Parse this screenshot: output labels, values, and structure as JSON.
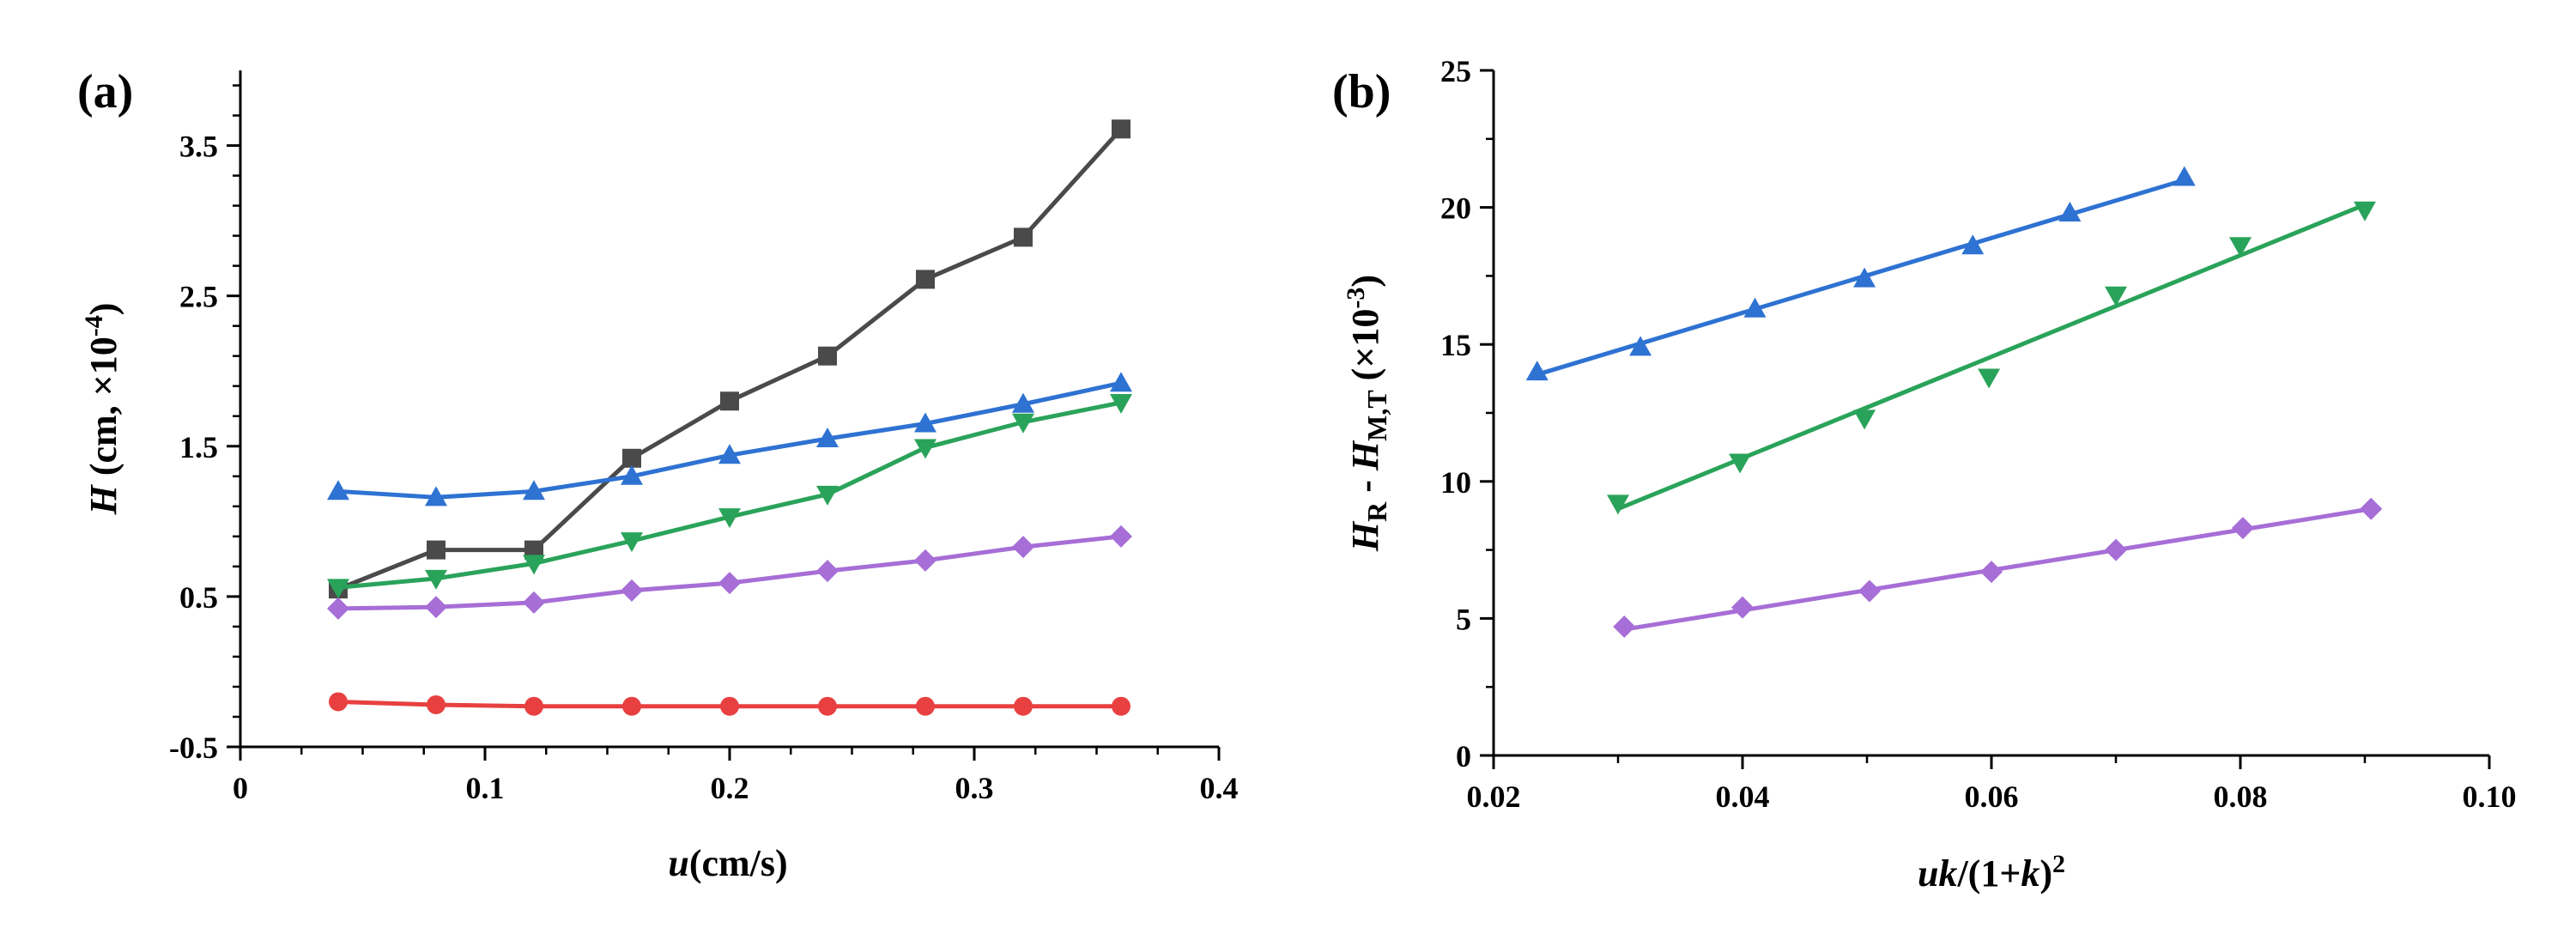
{
  "chart_data": [
    {
      "panel": "(a)",
      "type": "line",
      "xlabel_italic": "u",
      "xlabel_rest": "(cm/s)",
      "ylabel_italic": "H",
      "ylabel_rest": " (cm, ×10",
      "ylabel_exp": "-4",
      "ylabel_close": ")",
      "xlim": [
        0,
        0.4
      ],
      "ylim": [
        -0.5,
        4.0
      ],
      "xticks": [
        0,
        0.1,
        0.2,
        0.3,
        0.4
      ],
      "xtick_labels": [
        "0",
        "0.1",
        "0.2",
        "0.3",
        "0.4"
      ],
      "yticks": [
        -0.5,
        0.5,
        1.5,
        2.5,
        3.5
      ],
      "ytick_labels": [
        "-0.5",
        "0.5",
        "1.5",
        "2.5",
        "3.5"
      ],
      "series": [
        {
          "name": "square",
          "color": "#4a4a4a",
          "marker": "square",
          "x": [
            0.04,
            0.08,
            0.12,
            0.16,
            0.2,
            0.24,
            0.28,
            0.32,
            0.36
          ],
          "values": [
            0.55,
            0.81,
            0.81,
            1.42,
            1.8,
            2.1,
            2.61,
            2.89,
            3.61
          ]
        },
        {
          "name": "circle",
          "color": "#e84040",
          "marker": "circle",
          "x": [
            0.04,
            0.08,
            0.12,
            0.16,
            0.2,
            0.24,
            0.28,
            0.32,
            0.36
          ],
          "values": [
            -0.2,
            -0.22,
            -0.23,
            -0.23,
            -0.23,
            -0.23,
            -0.23,
            -0.23,
            -0.23
          ]
        },
        {
          "name": "triangle-up",
          "color": "#2e72d2",
          "marker": "triangle-up",
          "x": [
            0.04,
            0.08,
            0.12,
            0.16,
            0.2,
            0.24,
            0.28,
            0.32,
            0.36
          ],
          "values": [
            1.2,
            1.16,
            1.2,
            1.3,
            1.44,
            1.55,
            1.65,
            1.78,
            1.92
          ]
        },
        {
          "name": "triangle-down",
          "color": "#2aa35a",
          "marker": "triangle-down",
          "x": [
            0.04,
            0.08,
            0.12,
            0.16,
            0.2,
            0.24,
            0.28,
            0.32,
            0.36
          ],
          "values": [
            0.56,
            0.62,
            0.72,
            0.87,
            1.03,
            1.18,
            1.49,
            1.66,
            1.79
          ]
        },
        {
          "name": "diamond",
          "color": "#a66ed6",
          "marker": "diamond",
          "x": [
            0.04,
            0.08,
            0.12,
            0.16,
            0.2,
            0.24,
            0.28,
            0.32,
            0.36
          ],
          "values": [
            0.42,
            0.43,
            0.46,
            0.54,
            0.59,
            0.67,
            0.74,
            0.83,
            0.9
          ]
        }
      ]
    },
    {
      "panel": "(b)",
      "type": "scatter",
      "xlabel_italic": "uk",
      "xlabel_rest": "/(1+",
      "xlabel_italic2": "k",
      "xlabel_close": ")",
      "xlabel_exp": "2",
      "ylabel_H1": "H",
      "ylabel_sub1": "R",
      "ylabel_mid": " - ",
      "ylabel_H2": "H",
      "ylabel_sub2": "M,T",
      "ylabel_rest": " (×10",
      "ylabel_exp": "-3",
      "ylabel_close": ")",
      "xlim": [
        0.02,
        0.1
      ],
      "ylim": [
        0,
        25
      ],
      "xticks": [
        0.02,
        0.04,
        0.06,
        0.08,
        0.1
      ],
      "xtick_labels": [
        "0.02",
        "0.04",
        "0.06",
        "0.08",
        "0.10"
      ],
      "yticks": [
        0,
        5,
        10,
        15,
        20,
        25
      ],
      "ytick_labels": [
        "0",
        "5",
        "10",
        "15",
        "20",
        "25"
      ],
      "series": [
        {
          "name": "triangle-up",
          "color": "#2e72d2",
          "marker": "triangle-up",
          "x": [
            0.0235,
            0.0318,
            0.041,
            0.0498,
            0.0585,
            0.0663,
            0.0755
          ],
          "values": [
            14.0,
            14.9,
            16.3,
            17.4,
            18.6,
            19.8,
            21.1
          ],
          "fit": [
            [
              0.0235,
              13.9
            ],
            [
              0.0755,
              21.0
            ]
          ]
        },
        {
          "name": "triangle-down",
          "color": "#2aa35a",
          "marker": "triangle-down",
          "x": [
            0.03,
            0.0398,
            0.0498,
            0.0598,
            0.07,
            0.08,
            0.09
          ],
          "values": [
            9.2,
            10.7,
            12.3,
            13.8,
            16.8,
            18.6,
            19.9
          ],
          "fit": [
            [
              0.03,
              9.0
            ],
            [
              0.09,
              20.1
            ]
          ]
        },
        {
          "name": "diamond",
          "color": "#a66ed6",
          "marker": "diamond",
          "x": [
            0.0305,
            0.04,
            0.0502,
            0.06,
            0.07,
            0.0802,
            0.0905
          ],
          "values": [
            4.7,
            5.4,
            6.0,
            6.7,
            7.5,
            8.3,
            9.0
          ],
          "fit": [
            [
              0.0305,
              4.6
            ],
            [
              0.0905,
              9.0
            ]
          ]
        }
      ]
    }
  ]
}
